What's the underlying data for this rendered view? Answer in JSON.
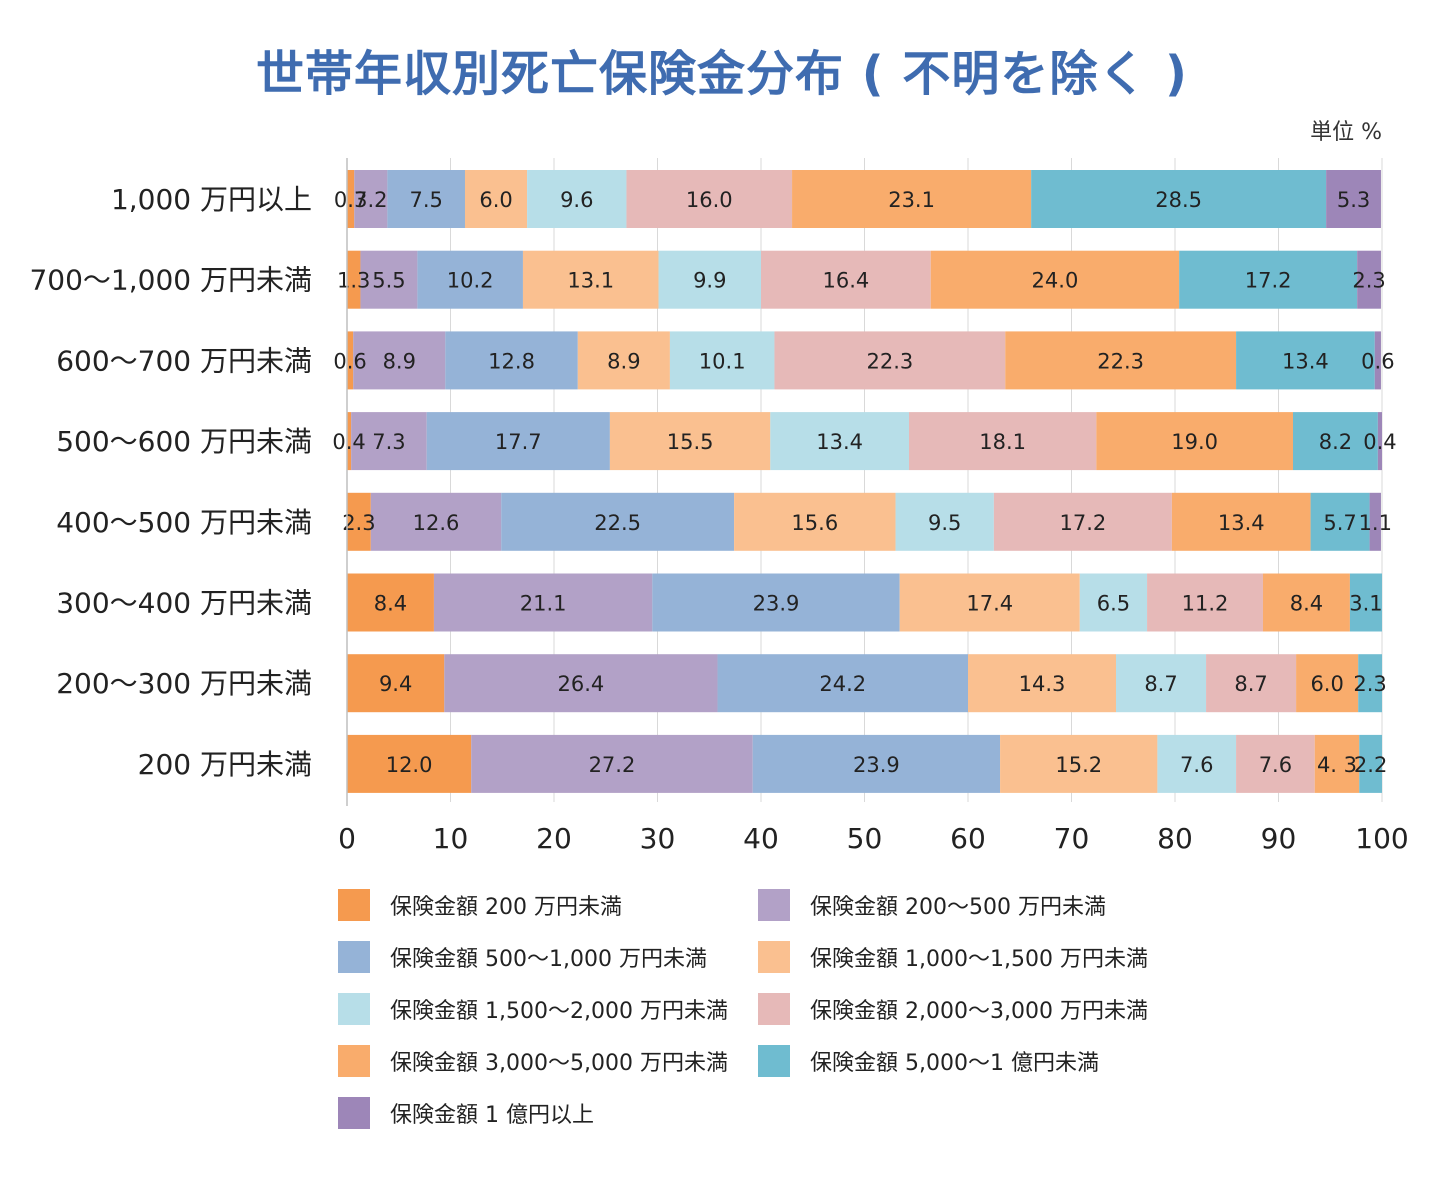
{
  "header": {
    "title": "世帯年収別死亡保険金分布 ( 不明を除く )",
    "unit": "単位 %"
  },
  "chart_data": {
    "type": "bar",
    "orientation": "horizontal",
    "stacked": true,
    "title": "世帯年収別死亡保険金分布 ( 不明を除く )",
    "unit": "単位 %",
    "categories": [
      "1,000 万円以上",
      "700～1,000 万円未満",
      "600～700 万円未満",
      "500～600 万円未満",
      "400～500 万円未満",
      "300～400 万円未満",
      "200～300 万円未満",
      "200 万円未満"
    ],
    "xlim": [
      0,
      100
    ],
    "xticks": [
      "0",
      "10",
      "20",
      "30",
      "40",
      "50",
      "60",
      "70",
      "80",
      "90",
      "100"
    ],
    "grid": true,
    "legend_position": "bottom",
    "series": [
      {
        "name": "保険金額 200 万円未満",
        "color": "#f59a4f",
        "values": [
          0.7,
          1.3,
          0.6,
          0.4,
          2.3,
          8.4,
          9.4,
          12.0
        ],
        "labels": [
          "0.7",
          "1.3",
          "0.6",
          "0.4",
          "2.3",
          "8.4",
          "9.4",
          "12.0"
        ]
      },
      {
        "name": "保険金額 200～500 万円未満",
        "color": "#b2a1c7",
        "values": [
          3.2,
          5.5,
          8.9,
          7.3,
          12.6,
          21.1,
          26.4,
          27.2
        ],
        "labels": [
          "3.2",
          "5.5",
          "8.9",
          "7.3",
          "12.6",
          "21.1",
          "26.4",
          "27.2"
        ]
      },
      {
        "name": "保険金額 500～1,000 万円未満",
        "color": "#95b3d7",
        "values": [
          7.5,
          10.2,
          12.8,
          17.7,
          22.5,
          23.9,
          24.2,
          23.9
        ],
        "labels": [
          "7.5",
          "10.2",
          "12.8",
          "17.7",
          "22.5",
          "23.9",
          "24.2",
          "23.9"
        ]
      },
      {
        "name": "保険金額 1,000～1,500 万円未満",
        "color": "#fac090",
        "values": [
          6.0,
          13.1,
          8.9,
          15.5,
          15.6,
          17.4,
          14.3,
          15.2
        ],
        "labels": [
          "6.0",
          "13.1",
          "8.9",
          "15.5",
          "15.6",
          "17.4",
          "14.3",
          "15.2"
        ]
      },
      {
        "name": "保険金額 1,500～2,000 万円未満",
        "color": "#b7dee8",
        "values": [
          9.6,
          9.9,
          10.1,
          13.4,
          9.5,
          6.5,
          8.7,
          7.6
        ],
        "labels": [
          "9.6",
          "9.9",
          "10.1",
          "13.4",
          "9.5",
          "6.5",
          "8.7",
          "7.6"
        ]
      },
      {
        "name": "保険金額 2,000～3,000 万円未満",
        "color": "#e6b9b8",
        "values": [
          16.0,
          16.4,
          22.3,
          18.1,
          17.2,
          11.2,
          8.7,
          7.6
        ],
        "labels": [
          "16.0",
          "16.4",
          "22.3",
          "18.1",
          "17.2",
          "11.2",
          "8.7",
          "7.6"
        ]
      },
      {
        "name": "保険金額 3,000～5,000 万円未満",
        "color": "#f9ac6c",
        "values": [
          23.1,
          24.0,
          22.3,
          19.0,
          13.4,
          8.4,
          6.0,
          4.3
        ],
        "labels": [
          "23.1",
          "24.0",
          "22.3",
          "19.0",
          "13.4",
          "8.4",
          "6.0",
          "4. 3"
        ]
      },
      {
        "name": "保険金額 5,000～1 億円未満",
        "color": "#6fbcd0",
        "values": [
          28.5,
          17.2,
          13.4,
          8.2,
          5.7,
          3.1,
          2.3,
          2.2
        ],
        "labels": [
          "28.5",
          "17.2",
          "13.4",
          "8.2",
          "5.7",
          "3.1",
          "2.3",
          "2.2"
        ]
      },
      {
        "name": "保険金額 1 億円以上",
        "color": "#9d86b8",
        "values": [
          5.3,
          2.3,
          0.6,
          0.4,
          1.1,
          0,
          0,
          0
        ],
        "labels": [
          "5.3",
          "2.3",
          "0.6",
          "0.4",
          "1.1",
          "",
          "",
          ""
        ]
      }
    ]
  }
}
